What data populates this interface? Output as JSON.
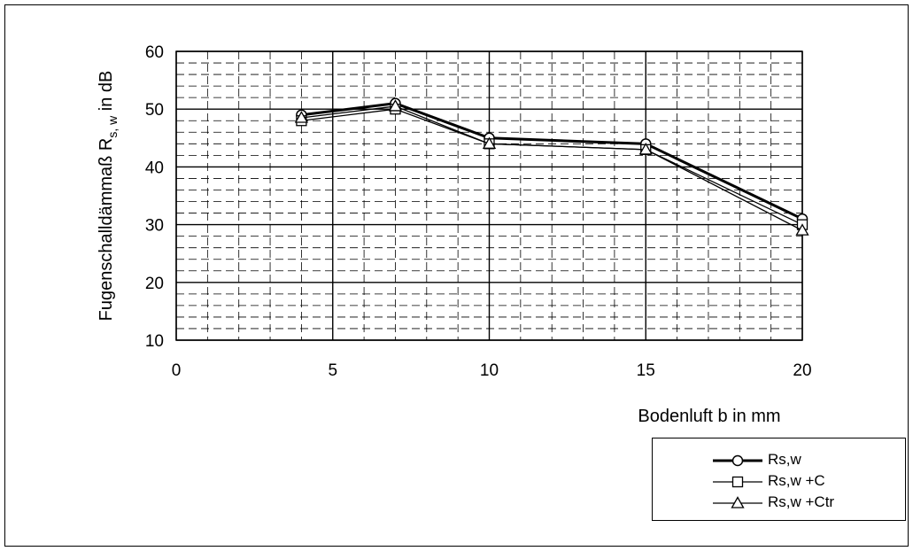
{
  "chart_data": {
    "type": "line",
    "xlabel": "Bodenluft b in mm",
    "ylabel": "Fugenschalldämmaß R",
    "ylabel_sub": "s, w",
    "ylabel_suffix": " in dB",
    "xlim": [
      0,
      20
    ],
    "ylim": [
      10,
      60
    ],
    "x_ticks": [
      "0",
      "5",
      "10",
      "15",
      "20"
    ],
    "y_ticks": [
      "10",
      "20",
      "30",
      "40",
      "50",
      "60"
    ],
    "grid": "major solid, minor dashed",
    "legend_position": "bottom-right",
    "x": [
      4,
      7,
      10,
      15,
      20
    ],
    "series": [
      {
        "name": "Rs,w",
        "values": [
          49,
          51,
          45,
          44,
          31
        ],
        "marker": "circle",
        "stroke": "#000000",
        "weight": "bold"
      },
      {
        "name": "Rs,w +C",
        "values": [
          48,
          50,
          44,
          43,
          30
        ],
        "marker": "square",
        "stroke": "#000000",
        "weight": "normal"
      },
      {
        "name": "Rs,w +Ctr",
        "values": [
          48.5,
          50.5,
          44,
          43,
          29
        ],
        "marker": "triangle",
        "stroke": "#000000",
        "weight": "normal"
      }
    ]
  }
}
